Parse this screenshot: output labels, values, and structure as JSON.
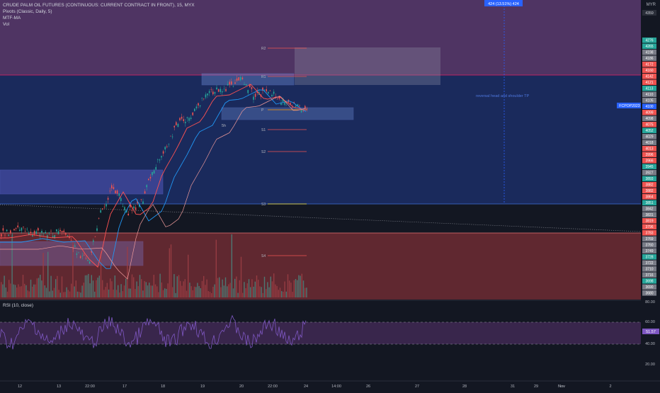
{
  "legend": {
    "title": "CRUDE PALM OIL FUTURES (CONTINUOUS: CURRENT CONTRACT IN FRONT), 15, MYX",
    "indicators": [
      "Pivots (Classic, Daily, 5)",
      "MTF-MA",
      "Vol"
    ]
  },
  "currency": "MYR",
  "rsi": {
    "label": "RSI (10, close)",
    "value_tag": "51.57",
    "levels": [
      "80.00",
      "60.00",
      "40.00",
      "20.00"
    ]
  },
  "measure_tag": "424 (13.51%) 424",
  "annotation": "reversal head and shoulder TP",
  "pivot_labels": [
    "R2",
    "R1",
    "P",
    "S1",
    "S2",
    "S3",
    "S4"
  ],
  "pivot_p_note": "5h",
  "symbol_tag": "FCPOP2023",
  "top_price": "4359",
  "price_tags": [
    {
      "t": "4276",
      "c": "#26a69a"
    },
    {
      "t": "4265",
      "c": "#26a69a"
    },
    {
      "t": "4198",
      "c": "#787b86"
    },
    {
      "t": "4186",
      "c": "#787b86"
    },
    {
      "t": "4172",
      "c": "#ef5350"
    },
    {
      "t": "4160",
      "c": "#ef5350"
    },
    {
      "t": "4142",
      "c": "#ef5350"
    },
    {
      "t": "4121",
      "c": "#ef5350"
    },
    {
      "t": "4113",
      "c": "#26a69a"
    },
    {
      "t": "4110",
      "c": "#787b86"
    },
    {
      "t": "4105",
      "c": "#787b86"
    },
    {
      "t": "4100",
      "c": "#2962ff"
    },
    {
      "t": "4099",
      "c": "#ef5350"
    },
    {
      "t": "4098",
      "c": "#787b86"
    },
    {
      "t": "4075",
      "c": "#ef5350"
    },
    {
      "t": "4052",
      "c": "#26a69a"
    },
    {
      "t": "4029",
      "c": "#787b86"
    },
    {
      "t": "4018",
      "c": "#787b86"
    },
    {
      "t": "4013",
      "c": "#ef5350"
    },
    {
      "t": "3996",
      "c": "#ef5350"
    },
    {
      "t": "3966",
      "c": "#ef5350"
    },
    {
      "t": "3945",
      "c": "#26a69a"
    },
    {
      "t": "3927",
      "c": "#787b86"
    },
    {
      "t": "3893",
      "c": "#26a69a"
    },
    {
      "t": "3882",
      "c": "#ef5350"
    },
    {
      "t": "3882",
      "c": "#ef5350"
    },
    {
      "t": "3864",
      "c": "#ef5350"
    },
    {
      "t": "3851",
      "c": "#26a69a"
    },
    {
      "t": "3842",
      "c": "#787b86"
    },
    {
      "t": "3831",
      "c": "#787b86"
    },
    {
      "t": "3819",
      "c": "#ef5350"
    },
    {
      "t": "3796",
      "c": "#ef5350"
    },
    {
      "t": "3783",
      "c": "#ef5350"
    },
    {
      "t": "3769",
      "c": "#787b86"
    },
    {
      "t": "3760",
      "c": "#787b86"
    },
    {
      "t": "3749",
      "c": "#787b86"
    },
    {
      "t": "3728",
      "c": "#26a69a"
    },
    {
      "t": "3722",
      "c": "#787b86"
    },
    {
      "t": "3710",
      "c": "#787b86"
    },
    {
      "t": "3716",
      "c": "#787b86"
    },
    {
      "t": "3698",
      "c": "#26a69a"
    },
    {
      "t": "3690",
      "c": "#787b86"
    },
    {
      "t": "3680",
      "c": "#787b86"
    }
  ],
  "x_axis": [
    "12",
    "13",
    "22:00",
    "17",
    "18",
    "19",
    "20",
    "22:00",
    "24",
    "14:00",
    "26",
    "27",
    "28",
    "29",
    "31",
    "Nov",
    "2"
  ],
  "colors": {
    "bg": "#131722",
    "up": "#26a69a",
    "down": "#ef5350",
    "zone_purple": "#5b3a6e",
    "zone_blue": "#1c2c63",
    "zone_red": "#6e2b33",
    "ma_blue": "#2196f3",
    "ma_red": "#ff5252"
  }
}
